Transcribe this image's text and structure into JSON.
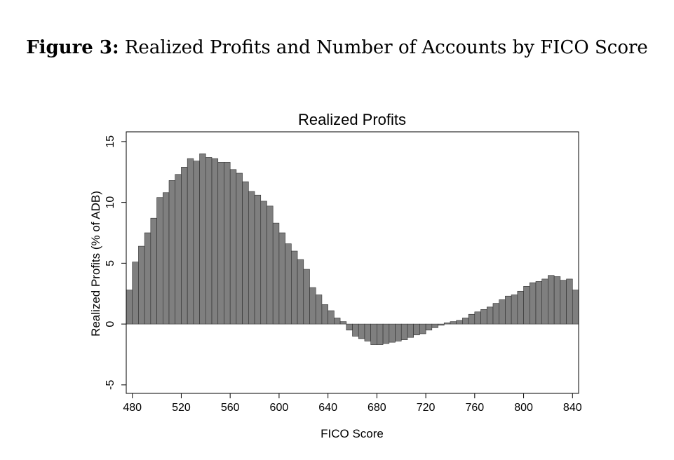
{
  "figure": {
    "label": "Figure 3:",
    "caption": "Realized Profits and Number of Accounts by FICO Score"
  },
  "chart_data": {
    "type": "bar",
    "title": "Realized Profits",
    "xlabel": "FICO Score",
    "ylabel": "Realized Profits (% of ADB)",
    "xlim": [
      475,
      845
    ],
    "ylim": [
      -5.7,
      15.8
    ],
    "xticks": [
      480,
      520,
      560,
      600,
      640,
      680,
      720,
      760,
      800,
      840
    ],
    "yticks": [
      -5,
      0,
      5,
      10,
      15
    ],
    "bin_width": 5,
    "bar_color": "#7f7f7f",
    "grid": false,
    "x": [
      475,
      480,
      485,
      490,
      495,
      500,
      505,
      510,
      515,
      520,
      525,
      530,
      535,
      540,
      545,
      550,
      555,
      560,
      565,
      570,
      575,
      580,
      585,
      590,
      595,
      600,
      605,
      610,
      615,
      620,
      625,
      630,
      635,
      640,
      645,
      650,
      655,
      660,
      665,
      670,
      675,
      680,
      685,
      690,
      695,
      700,
      705,
      710,
      715,
      720,
      725,
      730,
      735,
      740,
      745,
      750,
      755,
      760,
      765,
      770,
      775,
      780,
      785,
      790,
      795,
      800,
      805,
      810,
      815,
      820,
      825,
      830,
      835,
      840
    ],
    "values": [
      2.8,
      5.1,
      6.4,
      7.5,
      8.7,
      10.4,
      10.8,
      11.8,
      12.3,
      12.9,
      13.6,
      13.4,
      14.0,
      13.7,
      13.6,
      13.3,
      13.3,
      12.7,
      12.4,
      11.7,
      10.9,
      10.6,
      10.1,
      9.7,
      8.3,
      7.5,
      6.6,
      6.0,
      5.3,
      4.5,
      3.0,
      2.4,
      1.6,
      1.1,
      0.5,
      0.2,
      -0.5,
      -1.0,
      -1.2,
      -1.4,
      -1.7,
      -1.7,
      -1.6,
      -1.5,
      -1.4,
      -1.3,
      -1.1,
      -0.9,
      -0.8,
      -0.5,
      -0.3,
      -0.1,
      0.1,
      0.2,
      0.3,
      0.5,
      0.8,
      1.0,
      1.2,
      1.4,
      1.7,
      2.0,
      2.3,
      2.4,
      2.7,
      3.1,
      3.4,
      3.5,
      3.7,
      4.0,
      3.9,
      3.6,
      3.7,
      2.8
    ]
  }
}
